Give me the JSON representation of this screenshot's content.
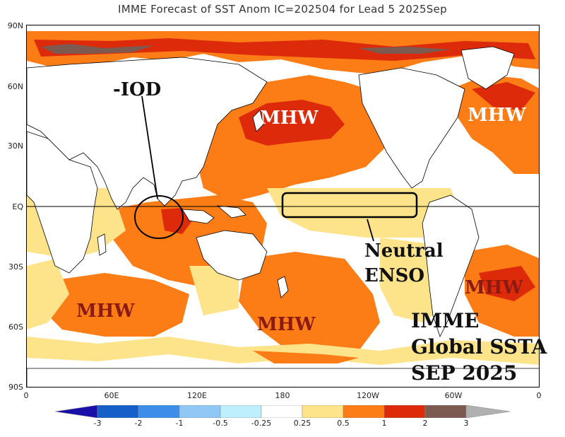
{
  "title": "IMME Forecast of SST Anom IC=202504 for Lead 5 2025Sep",
  "lat_labels": [
    "90N",
    "60N",
    "30N",
    "EQ",
    "30S",
    "60S",
    "90S"
  ],
  "lon_labels": [
    "0",
    "60E",
    "120E",
    "180",
    "120W",
    "60W",
    "0"
  ],
  "annotations": {
    "iod": "-IOD",
    "mhw_north_pacific": "MHW",
    "mhw_north_atlantic": "MHW",
    "mhw_south_atlantic": "MHW",
    "mhw_south_indian": "MHW",
    "mhw_south_pacific": "MHW",
    "neutral": "Neutral",
    "enso": "ENSO",
    "imme": "IMME",
    "global_ssta": "Global SSTA",
    "sep_2025": "SEP 2025"
  },
  "colorbar": {
    "labels": [
      "-3",
      "-2",
      "-1",
      "-0.5",
      "-0.25",
      "0.25",
      "0.5",
      "1",
      "2",
      "3"
    ],
    "colors": [
      "#1a0fa6",
      "#1560c8",
      "#3c8ee8",
      "#8fc8f5",
      "#bdf0fc",
      "#ffffff",
      "#fde48a",
      "#fc7c16",
      "#dd2a0b",
      "#7d5a4f",
      "#b0b0b0"
    ]
  },
  "colors": {
    "warm_light": "#fde48a",
    "warm_mid": "#fc7c16",
    "warm_strong": "#dd2a0b",
    "warm_extreme": "#7d5a4f",
    "annotation_dark": "#111111",
    "annotation_red": "#8b1a10",
    "annotation_white": "#ffffff"
  }
}
